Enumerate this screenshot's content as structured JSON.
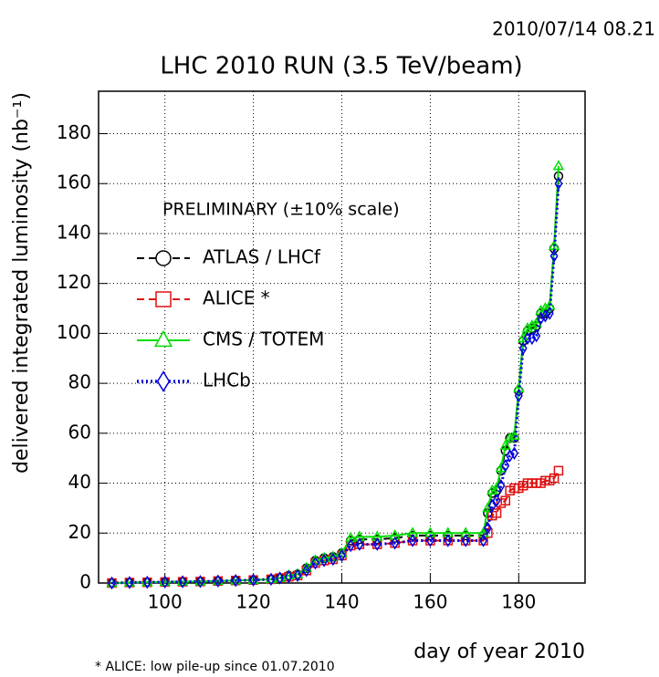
{
  "chart_data": {
    "type": "line",
    "timestamp": "2010/07/14   08.21",
    "title": "LHC 2010 RUN (3.5 TeV/beam)",
    "x_label": "day of year 2010",
    "y_label": "delivered integrated luminosity (nb⁻¹)",
    "legend_title": "PRELIMINARY (±10% scale)",
    "footnote": "* ALICE: low pile-up since 01.07.2010",
    "legend": "upper left",
    "grid": true,
    "xlim": [
      85,
      195
    ],
    "xticks": [
      100,
      120,
      140,
      160,
      180
    ],
    "ylim": [
      0,
      197
    ],
    "yticks": [
      0,
      20,
      40,
      60,
      80,
      100,
      120,
      140,
      160,
      180
    ],
    "x": [
      88,
      92,
      96,
      100,
      104,
      108,
      112,
      116,
      120,
      124,
      126,
      128,
      130,
      132,
      134,
      136,
      138,
      140,
      142,
      144,
      148,
      152,
      156,
      160,
      164,
      168,
      172,
      173,
      174,
      175,
      176,
      177,
      178,
      179,
      180,
      181,
      182,
      183,
      184,
      185,
      186,
      187,
      188,
      189
    ],
    "series": [
      {
        "name": "ATLAS / LHCf",
        "color": "#000000",
        "style": "dashed",
        "marker": "circle",
        "values": [
          0,
          0.2,
          0.3,
          0.4,
          0.5,
          0.6,
          0.8,
          1,
          1.2,
          1.5,
          2,
          3,
          3.5,
          6,
          9,
          10,
          10.5,
          12,
          17,
          17.5,
          17.5,
          18,
          19,
          19,
          19,
          19,
          19,
          28,
          36,
          37,
          45,
          53,
          58,
          58,
          77,
          97,
          101,
          102,
          103,
          108,
          108,
          110,
          134,
          163
        ]
      },
      {
        "name": "ALICE *",
        "color": "#e01010",
        "style": "dashed",
        "marker": "square",
        "values": [
          0,
          0.2,
          0.3,
          0.4,
          0.5,
          0.6,
          0.8,
          1,
          1.2,
          1.5,
          2,
          2.5,
          3,
          5,
          8,
          9,
          9.5,
          11,
          15,
          15.5,
          15.5,
          16,
          17,
          17,
          17,
          17,
          17,
          20,
          27,
          28,
          32,
          33,
          37,
          38,
          38,
          39,
          40,
          40,
          40,
          40,
          41,
          41,
          42,
          45
        ]
      },
      {
        "name": "CMS / TOTEM",
        "color": "#00dd00",
        "style": "solid",
        "marker": "triangle",
        "values": [
          0,
          0.2,
          0.3,
          0.4,
          0.5,
          0.6,
          0.8,
          1,
          1.2,
          1.5,
          2,
          3,
          3.5,
          6,
          9,
          10,
          10.5,
          12,
          18,
          18.5,
          18.5,
          19,
          20,
          20,
          20,
          20,
          20,
          30,
          37,
          38,
          46,
          55,
          58,
          59,
          78,
          98,
          102,
          103,
          104,
          109,
          110,
          111,
          135,
          167
        ]
      },
      {
        "name": "LHCb",
        "color": "#0000e0",
        "style": "dotted",
        "marker": "diamond",
        "values": [
          0,
          0.2,
          0.3,
          0.4,
          0.5,
          0.6,
          0.8,
          1,
          1.2,
          1.5,
          2,
          2.5,
          3,
          5,
          8,
          9,
          9.5,
          11,
          15,
          15.5,
          15.5,
          16,
          17,
          17,
          17,
          17,
          17,
          22,
          31,
          33,
          39,
          47,
          51,
          52,
          75,
          94,
          98,
          98,
          99,
          106,
          107,
          108,
          131,
          160
        ]
      }
    ]
  }
}
